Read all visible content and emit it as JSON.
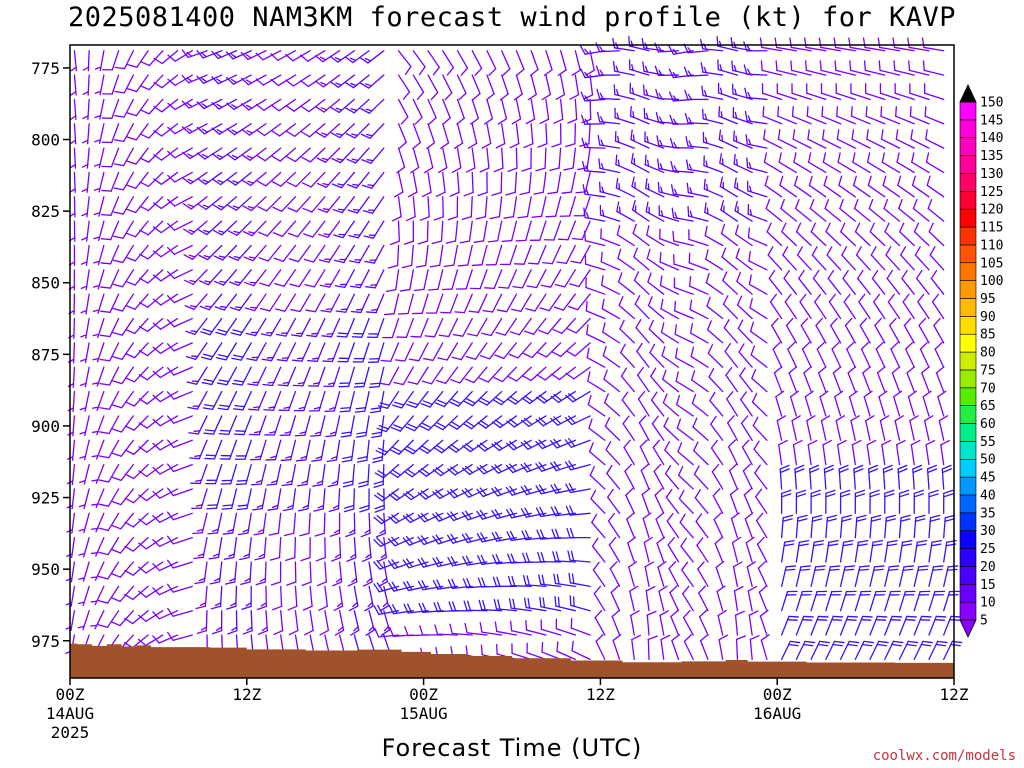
{
  "chart_data": {
    "type": "wind-barb-time-height",
    "title": "2025081400 NAM3KM forecast wind profile (kt) for KAVP",
    "xlabel": "Forecast Time (UTC)",
    "ylabel": "",
    "y_axis": {
      "unit": "hPa",
      "range": [
        988,
        767
      ],
      "ticks": [
        775,
        800,
        825,
        850,
        875,
        900,
        925,
        950,
        975
      ]
    },
    "x_axis": {
      "range_hours": [
        0,
        60
      ],
      "ticks": [
        {
          "hour": 0,
          "label": "00Z",
          "sub": "14AUG",
          "sub2": "2025"
        },
        {
          "hour": 12,
          "label": "12Z",
          "sub": "",
          "sub2": ""
        },
        {
          "hour": 24,
          "label": "00Z",
          "sub": "15AUG",
          "sub2": ""
        },
        {
          "hour": 36,
          "label": "12Z",
          "sub": "",
          "sub2": ""
        },
        {
          "hour": 48,
          "label": "00Z",
          "sub": "16AUG",
          "sub2": ""
        },
        {
          "hour": 60,
          "label": "12Z",
          "sub": "",
          "sub2": ""
        }
      ]
    },
    "colorbar": {
      "unit": "kt",
      "levels": [
        5,
        10,
        15,
        20,
        25,
        30,
        35,
        40,
        45,
        50,
        55,
        60,
        65,
        70,
        75,
        80,
        85,
        90,
        95,
        100,
        105,
        110,
        115,
        120,
        125,
        130,
        135,
        140,
        145,
        150
      ],
      "colors": [
        "#8800ff",
        "#6a00ff",
        "#4a00ff",
        "#2b00ff",
        "#0c00ff",
        "#0033ff",
        "#0066ff",
        "#0099ff",
        "#00ccff",
        "#00e5cc",
        "#00ee88",
        "#22ee44",
        "#55ee00",
        "#99ee00",
        "#ccee00",
        "#ffff00",
        "#ffdd00",
        "#ffbb00",
        "#ff9900",
        "#ff7700",
        "#ff5500",
        "#ff3300",
        "#ff0000",
        "#ff0033",
        "#ff0066",
        "#ff0099",
        "#ff00bb",
        "#ff00dd",
        "#ff00ff"
      ]
    },
    "terrain_pressure_hpa": [
      {
        "hour": 0,
        "p": 976
      },
      {
        "hour": 0.5,
        "p": 976.2
      },
      {
        "hour": 1.5,
        "p": 976.8
      },
      {
        "hour": 2.5,
        "p": 976.2
      },
      {
        "hour": 3.5,
        "p": 977
      },
      {
        "hour": 4.5,
        "p": 976.6
      },
      {
        "hour": 5.5,
        "p": 977.2
      },
      {
        "hour": 9.5,
        "p": 977.4
      },
      {
        "hour": 12,
        "p": 978
      },
      {
        "hour": 16,
        "p": 978.4
      },
      {
        "hour": 19.5,
        "p": 978.1
      },
      {
        "hour": 22.5,
        "p": 978.9
      },
      {
        "hour": 24.5,
        "p": 979.6
      },
      {
        "hour": 27,
        "p": 980.3
      },
      {
        "hour": 30,
        "p": 981.1
      },
      {
        "hour": 34,
        "p": 981.9
      },
      {
        "hour": 37.5,
        "p": 982.5
      },
      {
        "hour": 41.5,
        "p": 982.2
      },
      {
        "hour": 44.5,
        "p": 981.7
      },
      {
        "hour": 46,
        "p": 982.3
      },
      {
        "hour": 50,
        "p": 982.6
      },
      {
        "hour": 56,
        "p": 982.7
      },
      {
        "hour": 60,
        "p": 983
      }
    ]
  },
  "credit": "coolwx.com/models"
}
